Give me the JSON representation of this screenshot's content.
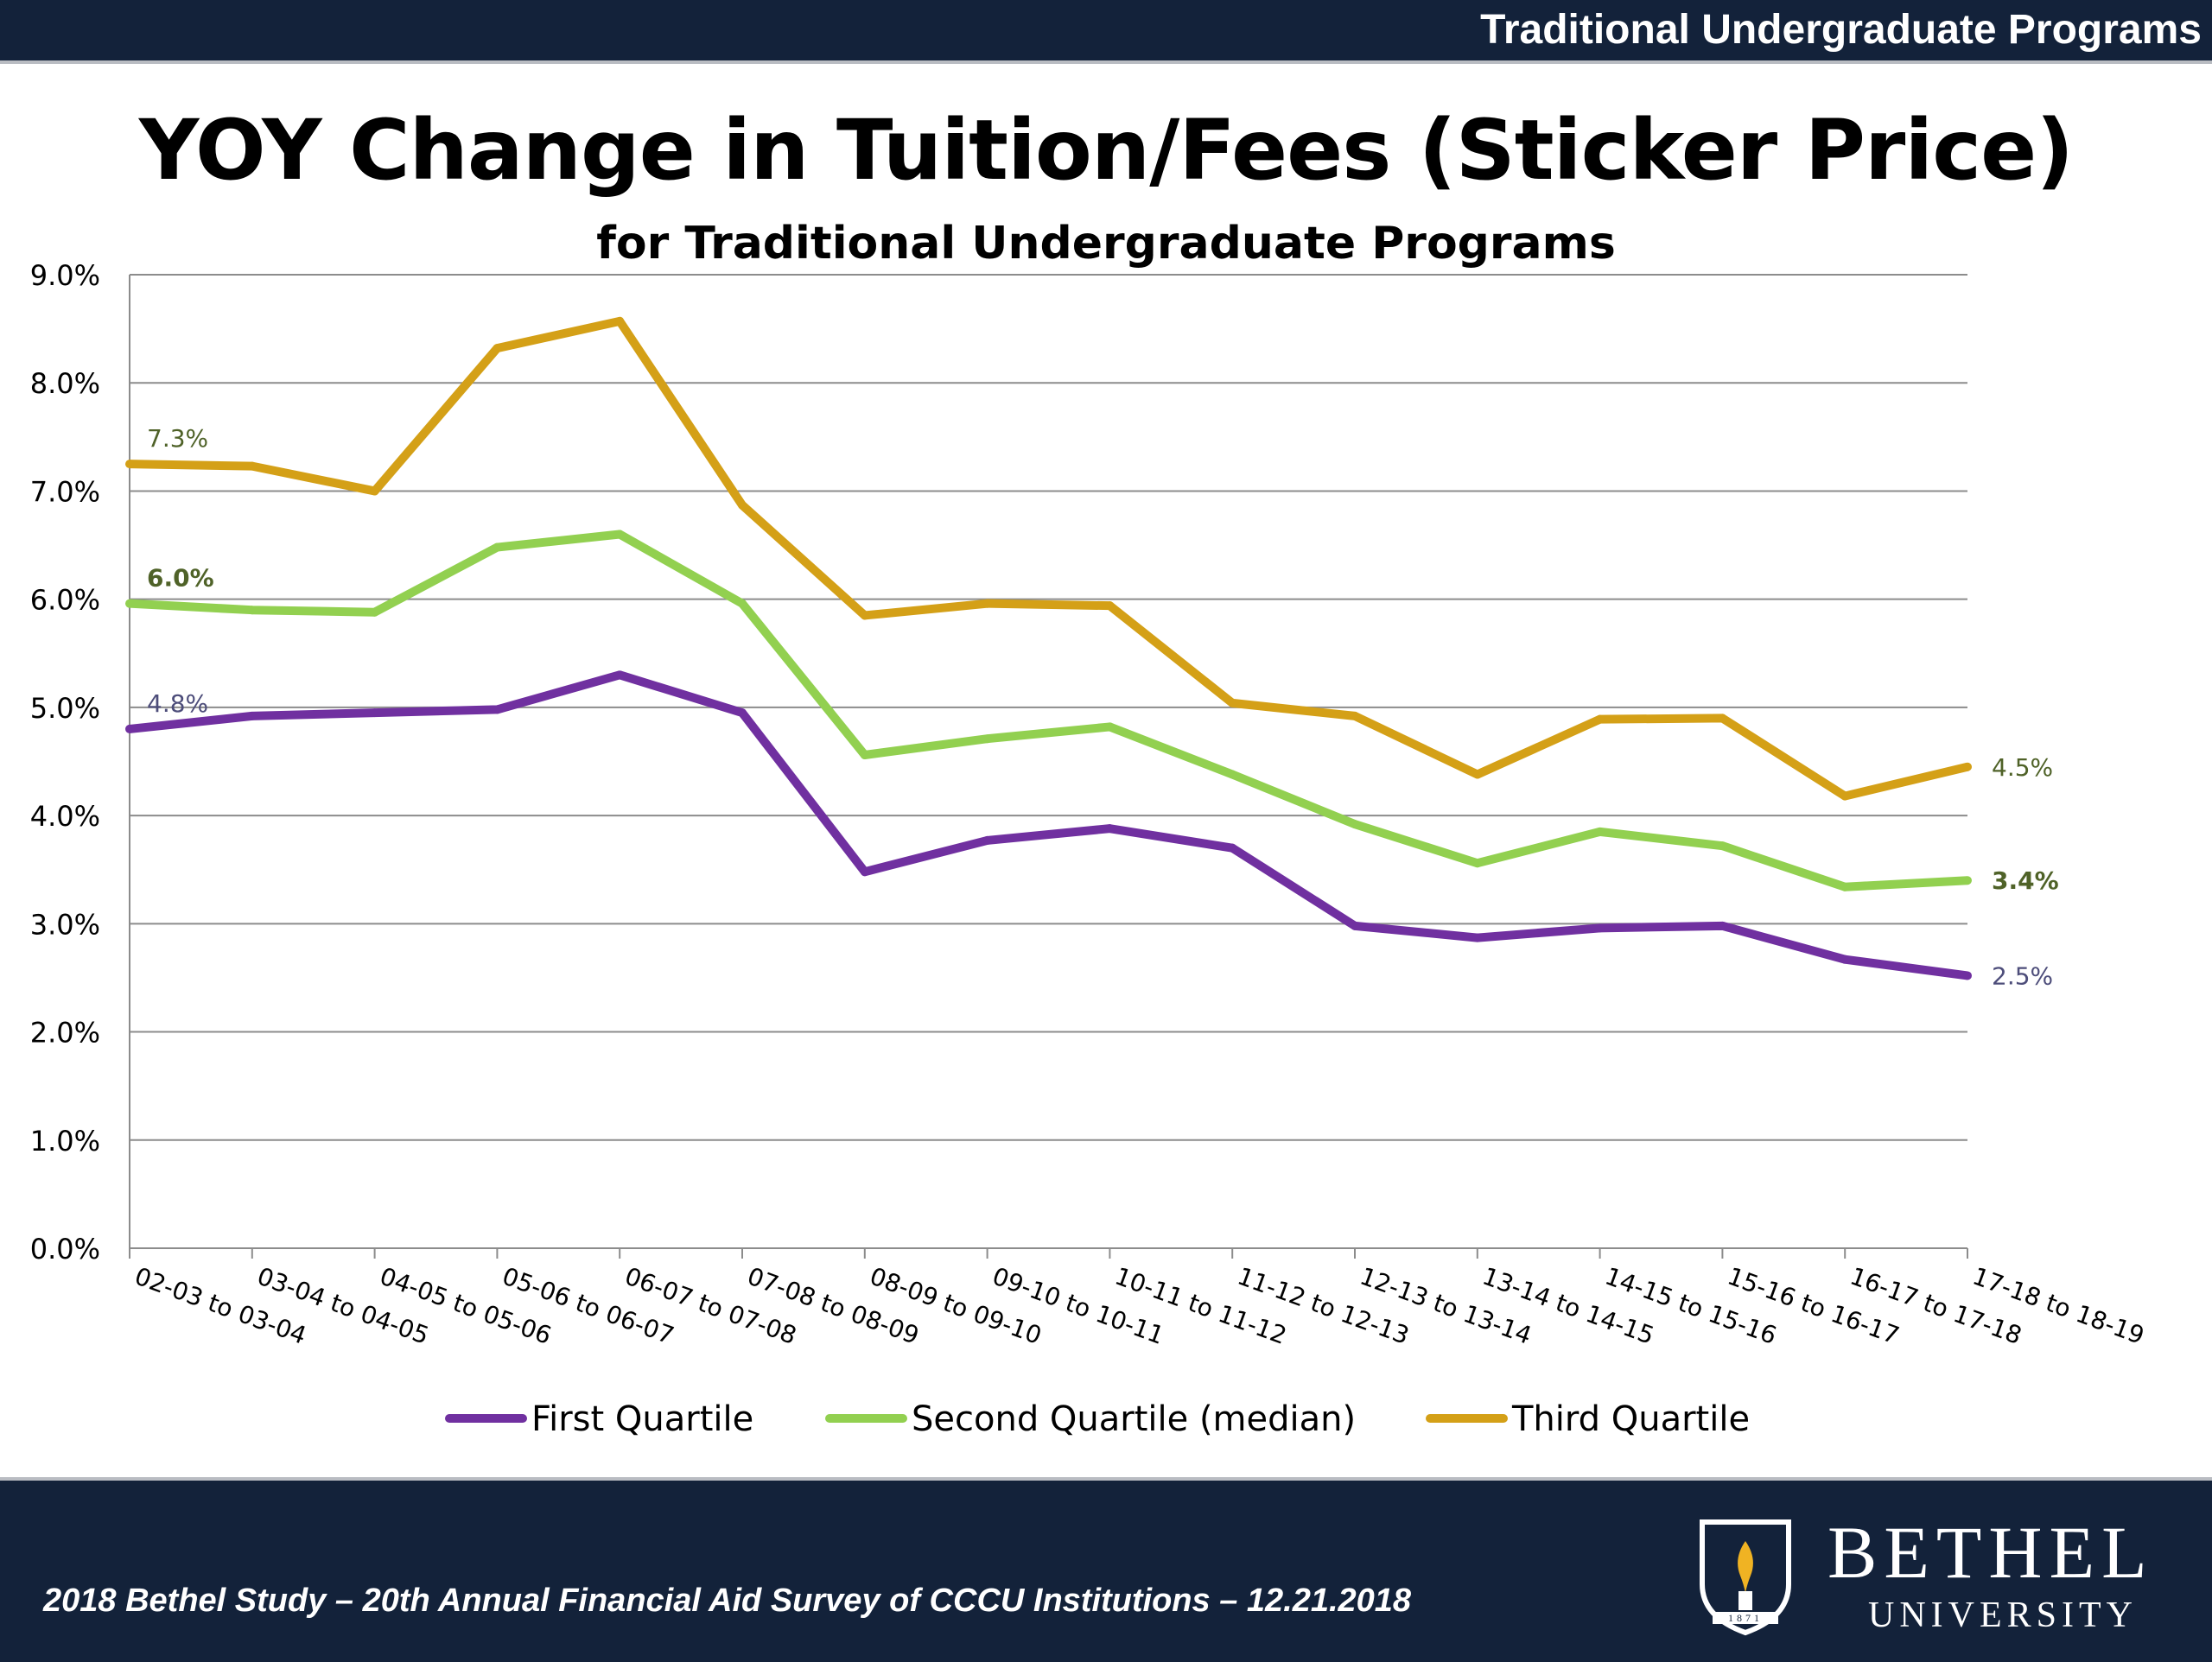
{
  "header": {
    "title": "Traditional Undergraduate Programs"
  },
  "footer": {
    "caption": "2018 Bethel Study – 20th Annual Financial Aid Survey of CCCU Institutions – 12.21.2018",
    "logo_name": "BETHEL",
    "logo_sub": "UNIVERSITY",
    "logo_year": "1871"
  },
  "chart_data": {
    "type": "line",
    "title": "YOY Change in Tuition/Fees (Sticker Price)",
    "subtitle": "for Traditional Undergraduate Programs",
    "xlabel": "",
    "ylabel": "",
    "ylim": [
      0,
      9
    ],
    "y_ticks": [
      "0.0%",
      "1.0%",
      "2.0%",
      "3.0%",
      "4.0%",
      "5.0%",
      "6.0%",
      "7.0%",
      "8.0%",
      "9.0%"
    ],
    "grid": true,
    "legend_position": "bottom",
    "categories": [
      "02-03 to 03-04",
      "03-04 to 04-05",
      "04-05 to 05-06",
      "05-06 to 06-07",
      "06-07 to 07-08",
      "07-08 to 08-09",
      "08-09 to 09-10",
      "09-10 to 10-11",
      "10-11 to 11-12",
      "11-12 to 12-13",
      "12-13 to 13-14",
      "13-14 to 14-15",
      "14-15 to 15-16",
      "15-16 to 16-17",
      "16-17 to 17-18",
      "17-18 to 18-19"
    ],
    "series": [
      {
        "name": "First Quartile",
        "color": "#7030a0",
        "values": [
          4.8,
          4.92,
          4.95,
          4.98,
          5.3,
          4.95,
          3.48,
          3.77,
          3.88,
          3.7,
          2.98,
          2.87,
          2.96,
          2.98,
          2.67,
          2.52
        ],
        "start_label": "4.8%",
        "end_label": "2.5%",
        "label_color": "#4d4d7a",
        "label_bold": false
      },
      {
        "name": "Second Quartile (median)",
        "color": "#92d050",
        "values": [
          5.96,
          5.9,
          5.88,
          6.48,
          6.6,
          5.96,
          4.56,
          4.71,
          4.82,
          4.38,
          3.92,
          3.56,
          3.85,
          3.72,
          3.34,
          3.4
        ],
        "start_label": "6.0%",
        "end_label": "3.4%",
        "label_color": "#4f6228",
        "label_bold": true
      },
      {
        "name": "Third Quartile",
        "color": "#d4a017",
        "values": [
          7.25,
          7.23,
          7.0,
          8.32,
          8.57,
          6.87,
          5.85,
          5.96,
          5.94,
          5.04,
          4.92,
          4.38,
          4.89,
          4.9,
          4.18,
          4.45
        ],
        "start_label": "7.3%",
        "end_label": "4.5%",
        "label_color": "#4f6228",
        "label_bold": false
      }
    ]
  }
}
